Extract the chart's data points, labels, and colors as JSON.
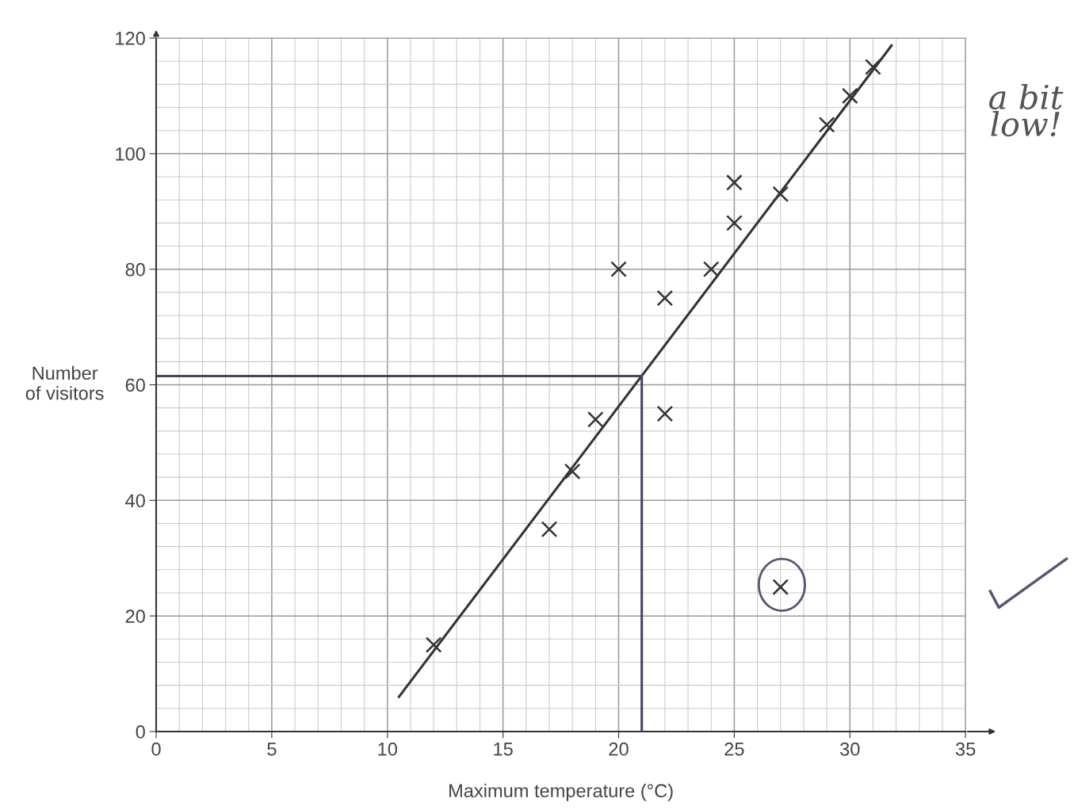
{
  "chart_data": {
    "type": "scatter",
    "xlabel": "Maximum temperature (°C)",
    "ylabel": "Number\nof visitors",
    "x": [
      12,
      17,
      18,
      19,
      20,
      22,
      22,
      24,
      25,
      25,
      27,
      27,
      29,
      30,
      31
    ],
    "series": [
      {
        "color": "#333333",
        "marker": "cross",
        "values": [
          15,
          35,
          45,
          54,
          80,
          75,
          55,
          80,
          95,
          88,
          93,
          25,
          105,
          110,
          115
        ]
      },
      {
        "type": "line",
        "color": "#333333",
        "marker": "none",
        "x": [
          10.5,
          31.8
        ],
        "values": [
          6,
          118.7
        ]
      },
      {
        "type": "line",
        "color": "#444466",
        "marker": "none",
        "x": [
          0,
          21,
          21
        ],
        "values": [
          61.5,
          61.5,
          0
        ]
      }
    ],
    "xlim": [
      0,
      35
    ],
    "ylim": [
      0,
      120
    ],
    "xticks": [
      0,
      5,
      10,
      15,
      20,
      25,
      30,
      35
    ],
    "yticks": [
      0,
      20,
      40,
      60,
      80,
      100,
      120
    ],
    "grid": true,
    "annotations": [
      "a bit low!"
    ]
  }
}
